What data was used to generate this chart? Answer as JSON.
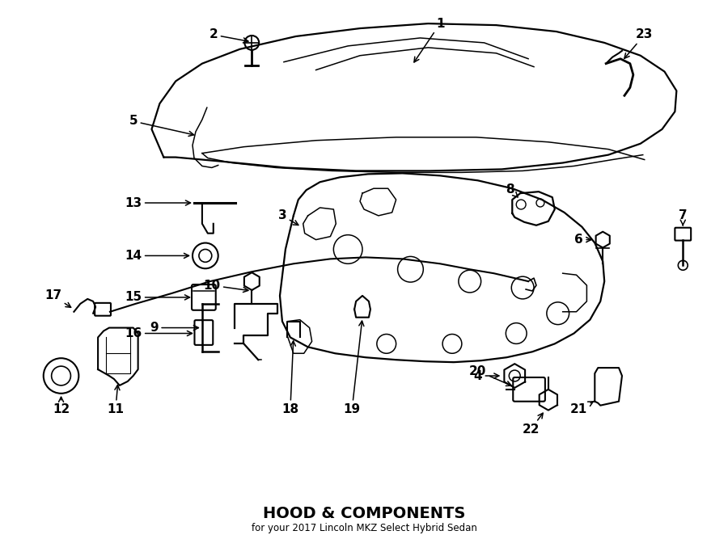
{
  "title": "HOOD & COMPONENTS",
  "subtitle": "for your 2017 Lincoln MKZ Select Hybrid Sedan",
  "bg": "#ffffff",
  "lc": "#000000",
  "fig_w": 9.0,
  "fig_h": 6.62,
  "dpi": 100
}
